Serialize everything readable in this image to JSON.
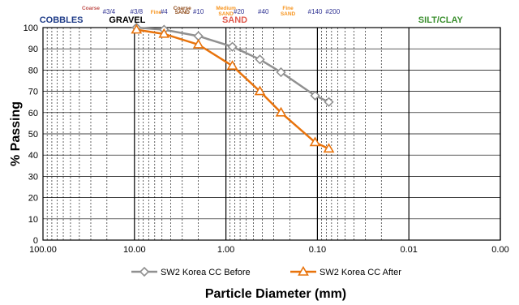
{
  "chart_data": {
    "type": "line",
    "x_scale": "log",
    "x_reversed": true,
    "xlabel": "Particle Diameter (mm)",
    "ylabel": "% Passing",
    "xlim": [
      100,
      0.001
    ],
    "ylim": [
      0,
      100
    ],
    "x_tick_labels": [
      {
        "x": 100,
        "label": "100.00"
      },
      {
        "x": 10,
        "label": "10.00"
      },
      {
        "x": 1,
        "label": "1.00"
      },
      {
        "x": 0.1,
        "label": "0.10"
      },
      {
        "x": 0.01,
        "label": "0.01"
      },
      {
        "x": 0.001,
        "label": "0.00"
      }
    ],
    "y_ticks": [
      0,
      10,
      20,
      30,
      40,
      50,
      60,
      70,
      80,
      90,
      100
    ],
    "grid": true,
    "legend_position": "bottom",
    "series": [
      {
        "name": "SW2 Korea CC Before",
        "color": "#909090",
        "marker": "diamond",
        "x": [
          9.5,
          4.75,
          2.0,
          0.85,
          0.425,
          0.25,
          0.106,
          0.075
        ],
        "y": [
          100,
          99,
          96,
          91,
          85,
          79,
          68,
          65
        ]
      },
      {
        "name": "SW2 Korea CC After",
        "color": "#E8730C",
        "marker": "triangle",
        "x": [
          9.5,
          4.75,
          2.0,
          0.85,
          0.425,
          0.25,
          0.106,
          0.075
        ],
        "y": [
          99,
          97,
          92,
          82,
          70,
          60,
          46,
          43
        ]
      }
    ],
    "header_labels": [
      {
        "text": "COBBLES",
        "x": 63,
        "color": "#1F3C88",
        "size": "big"
      },
      {
        "text": "GRAVEL",
        "x": 12,
        "color": "#000000",
        "size": "big"
      },
      {
        "text": "SAND",
        "x": 0.8,
        "color": "#E05A4E",
        "size": "big"
      },
      {
        "text": "SILT/CLAY",
        "x": 0.0045,
        "color": "#3A8F2E",
        "size": "big"
      }
    ],
    "header_annotations": [
      {
        "text": "Coarse",
        "x": 30,
        "color": "#C0504D",
        "row": "top"
      },
      {
        "text": "#3/4",
        "x": 19,
        "color": "#2E3192",
        "row": "mid"
      },
      {
        "text": "#3/8",
        "x": 9.5,
        "color": "#2E3192",
        "row": "mid"
      },
      {
        "text": "Fine",
        "x": 5.8,
        "color": "#F7941D",
        "row": "mid"
      },
      {
        "text": "#4",
        "x": 4.75,
        "color": "#2E3192",
        "row": "mid"
      },
      {
        "text": "Coarse",
        "x": 3.0,
        "color": "#8B4513",
        "row": "top"
      },
      {
        "text": "SAND",
        "x": 3.0,
        "color": "#8B4513",
        "row": "mid"
      },
      {
        "text": "#10",
        "x": 2.0,
        "color": "#2E3192",
        "row": "mid"
      },
      {
        "text": "Medium",
        "x": 1.0,
        "color": "#F7941D",
        "row": "top"
      },
      {
        "text": "SAND",
        "x": 1.0,
        "color": "#F7941D",
        "row": "mid2"
      },
      {
        "text": "#20",
        "x": 0.72,
        "color": "#2E3192",
        "row": "mid"
      },
      {
        "text": "#40",
        "x": 0.39,
        "color": "#2E3192",
        "row": "mid"
      },
      {
        "text": "Fine",
        "x": 0.21,
        "color": "#F7941D",
        "row": "top"
      },
      {
        "text": "SAND",
        "x": 0.21,
        "color": "#F7941D",
        "row": "mid2"
      },
      {
        "text": "#140",
        "x": 0.106,
        "color": "#2E3192",
        "row": "mid"
      },
      {
        "text": "#200",
        "x": 0.068,
        "color": "#2E3192",
        "row": "mid"
      }
    ]
  }
}
